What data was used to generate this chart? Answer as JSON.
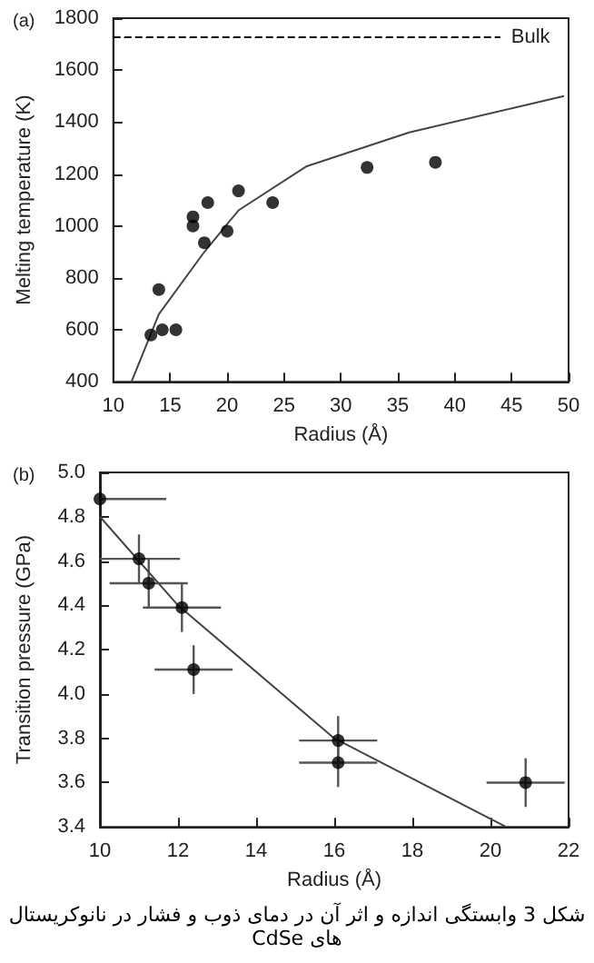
{
  "chart_data": [
    {
      "type": "scatter",
      "title": "(a)",
      "xlabel": "Radius (Å)",
      "ylabel": "Melting temperature (K)",
      "xlim": [
        10,
        50
      ],
      "xticks": [
        10,
        15,
        20,
        25,
        30,
        35,
        40,
        45,
        50
      ],
      "ylim": [
        400,
        1800
      ],
      "yticks": [
        400,
        600,
        800,
        1000,
        1200,
        1400,
        1600,
        1800
      ],
      "grid": false,
      "series": [
        {
          "marker": "circle",
          "color": "#000000",
          "x": [
            13.3,
            14,
            14.3,
            15.5,
            17,
            17,
            18,
            18.3,
            20,
            21,
            24,
            32.3,
            38.3
          ],
          "values": [
            580,
            755,
            600,
            600,
            1035,
            1000,
            935,
            1090,
            980,
            1135,
            1090,
            1225,
            1245
          ]
        },
        {
          "type": "line",
          "marker": "none",
          "color": "#444444",
          "x": [
            11.6,
            14,
            18,
            21,
            27,
            36,
            49.6
          ],
          "values": [
            400,
            660,
            900,
            1060,
            1230,
            1360,
            1500
          ]
        }
      ],
      "ref_lines": [
        {
          "axis": "y",
          "value": 1725,
          "label": "Bulk",
          "line_style": "dashed",
          "color": "#000000"
        }
      ]
    },
    {
      "type": "scatter",
      "title": "(b)",
      "xlabel": "Radius (Å)",
      "ylabel": "Transition pressure (GPa)",
      "xlim": [
        10,
        22
      ],
      "xticks": [
        10,
        12,
        14,
        16,
        18,
        20,
        22
      ],
      "ylim": [
        3.4,
        5.0
      ],
      "yticks": [
        {
          "value": 3.4,
          "label": "3.4"
        },
        {
          "value": 3.6,
          "label": "3.6"
        },
        {
          "value": 3.8,
          "label": "3.8"
        },
        {
          "value": 4.0,
          "label": "4.0"
        },
        {
          "value": 4.2,
          "label": "4.2"
        },
        {
          "value": 4.4,
          "label": "4.4"
        },
        {
          "value": 4.6,
          "label": "4.6"
        },
        {
          "value": 4.8,
          "label": "4.8"
        },
        {
          "value": 5.0,
          "label": "5.0"
        }
      ],
      "grid": false,
      "series": [
        {
          "marker": "circle",
          "color": "#000000",
          "x": [
            10,
            11,
            11.25,
            12.1,
            12.4,
            16.1,
            16.1,
            20.9
          ],
          "values": [
            4.88,
            4.61,
            4.5,
            4.39,
            4.11,
            3.79,
            3.69,
            3.6
          ],
          "errors": [
            null,
            [
              4.5,
              4.72
            ],
            [
              4.39,
              4.61
            ],
            [
              4.28,
              4.5
            ],
            [
              4.0,
              4.22
            ],
            [
              3.68,
              3.9
            ],
            [
              3.58,
              3.8
            ],
            [
              3.49,
              3.71
            ]
          ],
          "xerrors": [
            [
              10,
              11.7
            ],
            [
              10,
              12.05
            ],
            [
              10.25,
              12.25
            ],
            [
              11.1,
              13.1
            ],
            [
              11.4,
              13.4
            ],
            [
              15.1,
              17.1
            ],
            [
              15.1,
              17.1
            ],
            [
              19.9,
              21.9
            ]
          ]
        },
        {
          "type": "line",
          "marker": "none",
          "color": "#444444",
          "x": [
            10,
            12,
            16,
            20.4
          ],
          "values": [
            4.8,
            4.4,
            3.8,
            3.4
          ]
        }
      ],
      "annotations": [
        "شکل 3 وابستگی اندازه و اثر آن در دمای ذوب و فشار در نانوکریستال های CdSe"
      ]
    }
  ]
}
